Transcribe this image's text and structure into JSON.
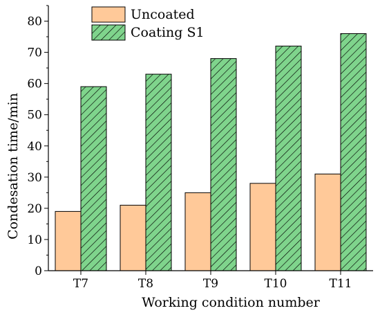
{
  "chart_data": {
    "type": "bar",
    "categories": [
      "T7",
      "T8",
      "T9",
      "T10",
      "T11"
    ],
    "series": [
      {
        "name": "Uncoated",
        "values": [
          19,
          21,
          25,
          28,
          31
        ],
        "color": "#ffc999",
        "pattern": "solid"
      },
      {
        "name": "Coating S1",
        "values": [
          59,
          63,
          68,
          72,
          76
        ],
        "color": "#7fd48c",
        "pattern": "diagonal-hatch"
      }
    ],
    "title": "",
    "xlabel": "Working condition number",
    "ylabel": "Condesation time/min",
    "ylim": [
      0,
      85
    ],
    "yticks": [
      0,
      10,
      20,
      30,
      40,
      50,
      60,
      70,
      80
    ],
    "grid": false,
    "legend_position": "top-left"
  }
}
